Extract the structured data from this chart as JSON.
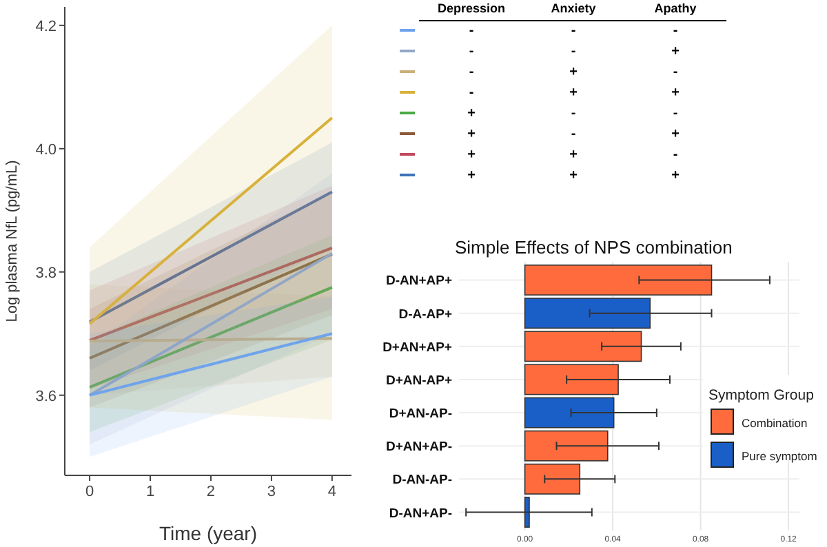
{
  "chart_data": [
    {
      "type": "line",
      "xlabel": "Time (year)",
      "ylabel": "Log plasma NfL (pg/mL)",
      "x": [
        0,
        4
      ],
      "xlim": [
        -0.41,
        4.32
      ],
      "ylim": [
        3.47,
        4.23
      ],
      "xticks": [
        0,
        1,
        2,
        3,
        4
      ],
      "yticks": [
        {
          "value": 3.6,
          "label": "3.6"
        },
        {
          "value": 3.8,
          "label": "3.8"
        },
        {
          "value": 4,
          "label": "4.0"
        },
        {
          "value": 4.2,
          "label": "4.2"
        }
      ],
      "grid": false,
      "line_style": "solid",
      "annotations": [
        "Depression",
        "Anxiety",
        "Apathy",
        "-",
        "-",
        "-",
        "-",
        "-",
        "+",
        "-",
        "+",
        "-",
        "-",
        "+",
        "+",
        "+",
        "-",
        "-",
        "+",
        "-",
        "+",
        "+",
        "+",
        "-",
        "+",
        "+",
        "+"
      ],
      "series": [
        {
          "color": "#6fa3ec",
          "values": [
            3.6,
            3.7
          ],
          "lower": [
            3.5,
            3.63
          ],
          "upper": [
            3.7,
            3.76
          ]
        },
        {
          "color": "#93a6c4",
          "values": [
            3.6,
            3.83
          ],
          "lower": [
            3.52,
            3.7
          ],
          "upper": [
            3.68,
            3.96
          ]
        },
        {
          "color": "#c9b07a",
          "values": [
            3.688,
            3.692
          ],
          "lower": [
            3.6,
            3.63
          ],
          "upper": [
            3.78,
            3.76
          ]
        },
        {
          "color": "#d8b13c",
          "values": [
            3.716,
            4.05
          ],
          "lower": [
            3.58,
            3.56
          ],
          "upper": [
            3.84,
            4.2
          ]
        },
        {
          "color": "#4aa844",
          "values": [
            3.613,
            3.775
          ],
          "lower": [
            3.54,
            3.69
          ],
          "upper": [
            3.69,
            3.86
          ]
        },
        {
          "color": "#8b5a3c",
          "values": [
            3.66,
            3.829
          ],
          "lower": [
            3.58,
            3.73
          ],
          "upper": [
            3.74,
            3.93
          ]
        },
        {
          "color": "#c04a5e",
          "values": [
            3.689,
            3.839
          ],
          "lower": [
            3.61,
            3.74
          ],
          "upper": [
            3.77,
            3.94
          ]
        },
        {
          "color": "#3f73b8",
          "values": [
            3.719,
            3.93
          ],
          "lower": [
            3.64,
            3.84
          ],
          "upper": [
            3.8,
            4.01
          ]
        }
      ]
    },
    {
      "type": "bar",
      "orientation": "horizontal",
      "title": "Simple Effects of NPS combination",
      "legend_title": "Symptom Group",
      "legend": "right",
      "grid": true,
      "categories": [
        "D-AN+AP+",
        "D-A-AP+",
        "D+AN+AP+",
        "D+AN-AP+",
        "D+AN-AP-",
        "D+AN+AP-",
        "D-AN-AP-",
        "D-AN+AP-"
      ],
      "xlim": [
        -0.03,
        0.125
      ],
      "xticks": [
        {
          "value": 0,
          "label": "0.00"
        },
        {
          "value": 0.04,
          "label": "0.04"
        },
        {
          "value": 0.08,
          "label": "0.08"
        },
        {
          "value": 0.12,
          "label": "0.12"
        }
      ],
      "series": [
        {
          "name": "Combination",
          "color": "#ff6b3d",
          "values": [
            0.085,
            null,
            0.053,
            0.0425,
            null,
            0.0377,
            0.025,
            null
          ],
          "errors": [
            [
              0.052,
              0.1115
            ],
            null,
            [
              0.035,
              0.071
            ],
            [
              0.019,
              0.066
            ],
            null,
            [
              0.0144,
              0.061
            ],
            [
              0.009,
              0.041
            ],
            null
          ]
        },
        {
          "name": "Pure symptom",
          "color": "#1a5fc8",
          "values": [
            null,
            0.057,
            null,
            null,
            0.0405,
            null,
            null,
            0.002
          ],
          "errors": [
            null,
            [
              0.0295,
              0.085
            ],
            null,
            null,
            [
              0.021,
              0.06
            ],
            null,
            null,
            [
              -0.0268,
              0.0305
            ]
          ]
        }
      ]
    }
  ]
}
